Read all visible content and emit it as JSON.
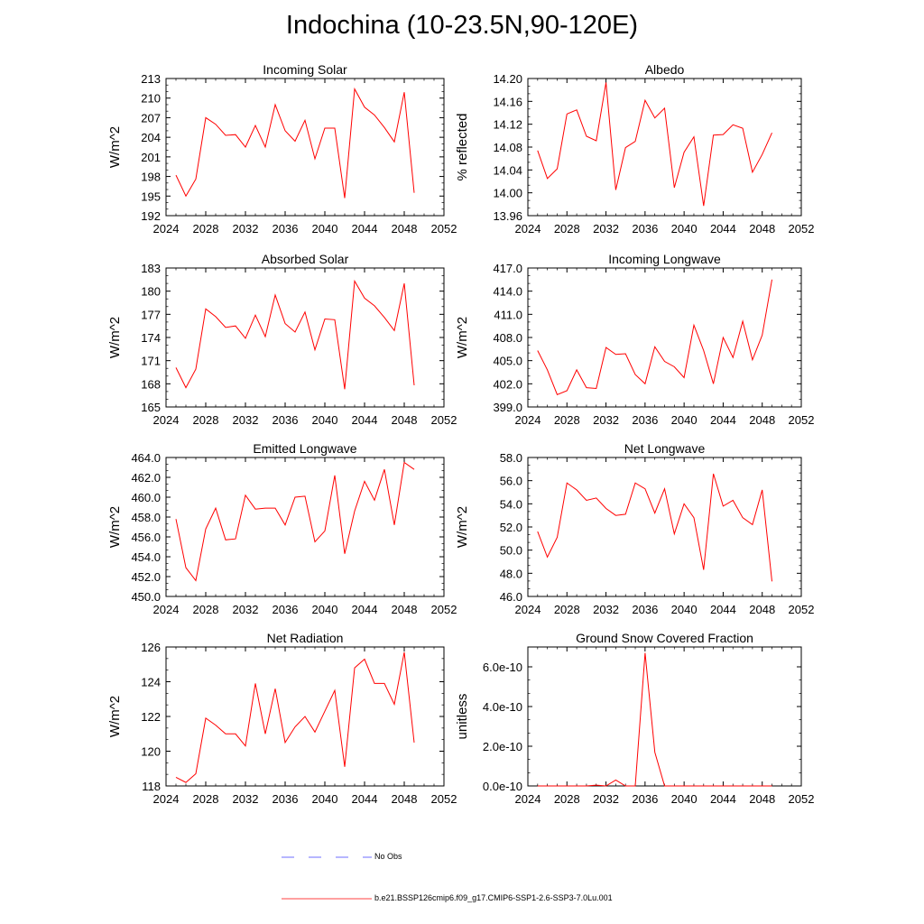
{
  "page": {
    "title": "Indochina (10-23.5N,90-120E)"
  },
  "legend": {
    "entries": [
      {
        "label": "No Obs",
        "color": "#3c3cff",
        "style": "dashed"
      },
      {
        "label": "b.e21.BSSP126cmip6.f09_g17.CMIP6-SSP1-2.6-SSP3-7.0Lu.001",
        "color": "#ff0000",
        "style": "solid"
      }
    ]
  },
  "chart_data": [
    {
      "type": "line",
      "title": "Incoming Solar",
      "ylabel": "W/m^2",
      "xlabel": "",
      "xlim": [
        2024,
        2052
      ],
      "ylim": [
        192,
        213
      ],
      "xticks": [
        2024,
        2028,
        2032,
        2036,
        2040,
        2044,
        2048,
        2052
      ],
      "xtick_labels": [
        "2024",
        "2028",
        "2032",
        "2036",
        "2040",
        "2044",
        "2048",
        "2052"
      ],
      "yticks": [
        192,
        195,
        198,
        201,
        204,
        207,
        210,
        213
      ],
      "ytick_labels": [
        "192",
        "195",
        "198",
        "201",
        "204",
        "207",
        "210",
        "213"
      ],
      "series": [
        {
          "color": "#ff0000",
          "x": [
            2025,
            2026,
            2027,
            2028,
            2029,
            2030,
            2031,
            2032,
            2033,
            2034,
            2035,
            2036,
            2037,
            2038,
            2039,
            2040,
            2041,
            2042,
            2043,
            2044,
            2045,
            2046,
            2047,
            2048,
            2049
          ],
          "y": [
            198.2,
            195.0,
            197.6,
            207.0,
            206.0,
            204.3,
            204.4,
            202.5,
            205.8,
            202.5,
            209.0,
            205.0,
            203.4,
            206.6,
            200.7,
            205.4,
            205.4,
            194.7,
            211.4,
            208.6,
            207.4,
            205.5,
            203.3,
            210.9,
            195.5
          ]
        }
      ]
    },
    {
      "type": "line",
      "title": "Albedo",
      "ylabel": "% reflected",
      "xlabel": "",
      "xlim": [
        2024,
        2052
      ],
      "ylim": [
        13.96,
        14.2
      ],
      "xticks": [
        2024,
        2028,
        2032,
        2036,
        2040,
        2044,
        2048,
        2052
      ],
      "xtick_labels": [
        "2024",
        "2028",
        "2032",
        "2036",
        "2040",
        "2044",
        "2048",
        "2052"
      ],
      "yticks": [
        13.96,
        14.0,
        14.04,
        14.08,
        14.12,
        14.16,
        14.2
      ],
      "ytick_labels": [
        "13.96",
        "14.00",
        "14.04",
        "14.08",
        "14.12",
        "14.16",
        "14.20"
      ],
      "series": [
        {
          "color": "#ff0000",
          "x": [
            2025,
            2026,
            2027,
            2028,
            2029,
            2030,
            2031,
            2032,
            2033,
            2034,
            2035,
            2036,
            2037,
            2038,
            2039,
            2040,
            2041,
            2042,
            2043,
            2044,
            2045,
            2046,
            2047,
            2048,
            2049
          ],
          "y": [
            14.074,
            14.025,
            14.042,
            14.138,
            14.145,
            14.099,
            14.091,
            14.193,
            14.005,
            14.079,
            14.09,
            14.162,
            14.131,
            14.148,
            14.009,
            14.071,
            14.098,
            13.977,
            14.101,
            14.102,
            14.119,
            14.113,
            14.036,
            14.067,
            14.105
          ]
        }
      ]
    },
    {
      "type": "line",
      "title": "Absorbed Solar",
      "ylabel": "W/m^2",
      "xlabel": "",
      "xlim": [
        2024,
        2052
      ],
      "ylim": [
        165,
        183
      ],
      "xticks": [
        2024,
        2028,
        2032,
        2036,
        2040,
        2044,
        2048,
        2052
      ],
      "xtick_labels": [
        "2024",
        "2028",
        "2032",
        "2036",
        "2040",
        "2044",
        "2048",
        "2052"
      ],
      "yticks": [
        165,
        168,
        171,
        174,
        177,
        180,
        183
      ],
      "ytick_labels": [
        "165",
        "168",
        "171",
        "174",
        "177",
        "180",
        "183"
      ],
      "series": [
        {
          "color": "#ff0000",
          "x": [
            2025,
            2026,
            2027,
            2028,
            2029,
            2030,
            2031,
            2032,
            2033,
            2034,
            2035,
            2036,
            2037,
            2038,
            2039,
            2040,
            2041,
            2042,
            2043,
            2044,
            2045,
            2046,
            2047,
            2048,
            2049
          ],
          "y": [
            170.1,
            167.5,
            169.9,
            177.7,
            176.7,
            175.3,
            175.5,
            173.9,
            176.9,
            174.1,
            179.5,
            175.8,
            174.7,
            177.3,
            172.4,
            176.4,
            176.3,
            167.3,
            181.3,
            179.1,
            178.1,
            176.6,
            174.9,
            181.0,
            167.8
          ]
        }
      ]
    },
    {
      "type": "line",
      "title": "Incoming Longwave",
      "ylabel": "W/m^2",
      "xlabel": "",
      "xlim": [
        2024,
        2052
      ],
      "ylim": [
        399.0,
        417.0
      ],
      "xticks": [
        2024,
        2028,
        2032,
        2036,
        2040,
        2044,
        2048,
        2052
      ],
      "xtick_labels": [
        "2024",
        "2028",
        "2032",
        "2036",
        "2040",
        "2044",
        "2048",
        "2052"
      ],
      "yticks": [
        399.0,
        402.0,
        405.0,
        408.0,
        411.0,
        414.0,
        417.0
      ],
      "ytick_labels": [
        "399.0",
        "402.0",
        "405.0",
        "408.0",
        "411.0",
        "414.0",
        "417.0"
      ],
      "series": [
        {
          "color": "#ff0000",
          "x": [
            2025,
            2026,
            2027,
            2028,
            2029,
            2030,
            2031,
            2032,
            2033,
            2034,
            2035,
            2036,
            2037,
            2038,
            2039,
            2040,
            2041,
            2042,
            2043,
            2044,
            2045,
            2046,
            2047,
            2048,
            2049
          ],
          "y": [
            406.3,
            403.8,
            400.6,
            401.1,
            403.8,
            401.5,
            401.4,
            406.7,
            405.8,
            405.9,
            403.2,
            402.0,
            406.8,
            404.9,
            404.2,
            402.8,
            409.6,
            406.3,
            402.0,
            408.0,
            405.4,
            410.1,
            405.1,
            408.3,
            415.5
          ]
        }
      ]
    },
    {
      "type": "line",
      "title": "Emitted Longwave",
      "ylabel": "W/m^2",
      "xlabel": "",
      "xlim": [
        2024,
        2052
      ],
      "ylim": [
        450.0,
        464.0
      ],
      "xticks": [
        2024,
        2028,
        2032,
        2036,
        2040,
        2044,
        2048,
        2052
      ],
      "xtick_labels": [
        "2024",
        "2028",
        "2032",
        "2036",
        "2040",
        "2044",
        "2048",
        "2052"
      ],
      "yticks": [
        450.0,
        452.0,
        454.0,
        456.0,
        458.0,
        460.0,
        462.0,
        464.0
      ],
      "ytick_labels": [
        "450.0",
        "452.0",
        "454.0",
        "456.0",
        "458.0",
        "460.0",
        "462.0",
        "464.0"
      ],
      "series": [
        {
          "color": "#ff0000",
          "x": [
            2025,
            2026,
            2027,
            2028,
            2029,
            2030,
            2031,
            2032,
            2033,
            2034,
            2035,
            2036,
            2037,
            2038,
            2039,
            2040,
            2041,
            2042,
            2043,
            2044,
            2045,
            2046,
            2047,
            2048,
            2049
          ],
          "y": [
            457.8,
            452.9,
            451.6,
            456.8,
            458.9,
            455.7,
            455.8,
            460.2,
            458.8,
            458.9,
            458.9,
            457.2,
            460.0,
            460.1,
            455.5,
            456.6,
            462.2,
            454.3,
            458.6,
            461.6,
            459.7,
            462.8,
            457.2,
            463.5,
            462.8
          ]
        }
      ]
    },
    {
      "type": "line",
      "title": "Net Longwave",
      "ylabel": "W/m^2",
      "xlabel": "",
      "xlim": [
        2024,
        2052
      ],
      "ylim": [
        46.0,
        58.0
      ],
      "xticks": [
        2024,
        2028,
        2032,
        2036,
        2040,
        2044,
        2048,
        2052
      ],
      "xtick_labels": [
        "2024",
        "2028",
        "2032",
        "2036",
        "2040",
        "2044",
        "2048",
        "2052"
      ],
      "yticks": [
        46.0,
        48.0,
        50.0,
        52.0,
        54.0,
        56.0,
        58.0
      ],
      "ytick_labels": [
        "46.0",
        "48.0",
        "50.0",
        "52.0",
        "54.0",
        "56.0",
        "58.0"
      ],
      "series": [
        {
          "color": "#ff0000",
          "x": [
            2025,
            2026,
            2027,
            2028,
            2029,
            2030,
            2031,
            2032,
            2033,
            2034,
            2035,
            2036,
            2037,
            2038,
            2039,
            2040,
            2041,
            2042,
            2043,
            2044,
            2045,
            2046,
            2047,
            2048,
            2049
          ],
          "y": [
            51.6,
            49.4,
            51.1,
            55.8,
            55.2,
            54.3,
            54.5,
            53.6,
            53.0,
            53.1,
            55.8,
            55.3,
            53.2,
            55.3,
            51.4,
            54.0,
            52.8,
            48.3,
            56.6,
            53.8,
            54.3,
            52.8,
            52.2,
            55.2,
            47.3
          ]
        }
      ]
    },
    {
      "type": "line",
      "title": "Net Radiation",
      "ylabel": "W/m^2",
      "xlabel": "",
      "xlim": [
        2024,
        2052
      ],
      "ylim": [
        118,
        126
      ],
      "xticks": [
        2024,
        2028,
        2032,
        2036,
        2040,
        2044,
        2048,
        2052
      ],
      "xtick_labels": [
        "2024",
        "2028",
        "2032",
        "2036",
        "2040",
        "2044",
        "2048",
        "2052"
      ],
      "yticks": [
        118,
        120,
        122,
        124,
        126
      ],
      "ytick_labels": [
        "118",
        "120",
        "122",
        "124",
        "126"
      ],
      "series": [
        {
          "color": "#ff0000",
          "x": [
            2025,
            2026,
            2027,
            2028,
            2029,
            2030,
            2031,
            2032,
            2033,
            2034,
            2035,
            2036,
            2037,
            2038,
            2039,
            2040,
            2041,
            2042,
            2043,
            2044,
            2045,
            2046,
            2047,
            2048,
            2049
          ],
          "y": [
            118.5,
            118.2,
            118.7,
            121.9,
            121.5,
            121.0,
            121.0,
            120.3,
            123.9,
            121.0,
            123.6,
            120.5,
            121.4,
            122.0,
            121.1,
            122.3,
            123.5,
            119.1,
            124.8,
            125.3,
            123.9,
            123.9,
            122.7,
            125.7,
            120.5
          ]
        }
      ]
    },
    {
      "type": "line",
      "title": "Ground Snow Covered Fraction",
      "ylabel": "unitless",
      "xlabel": "",
      "xlim": [
        2024,
        2052
      ],
      "ylim": [
        0,
        7e-10
      ],
      "xticks": [
        2024,
        2028,
        2032,
        2036,
        2040,
        2044,
        2048,
        2052
      ],
      "xtick_labels": [
        "2024",
        "2028",
        "2032",
        "2036",
        "2040",
        "2044",
        "2048",
        "2052"
      ],
      "yticks": [
        0,
        2e-10,
        4e-10,
        6e-10
      ],
      "ytick_labels": [
        "0.0e-10",
        "2.0e-10",
        "4.0e-10",
        "6.0e-10"
      ],
      "series": [
        {
          "color": "#ff0000",
          "x": [
            2025,
            2026,
            2027,
            2028,
            2029,
            2030,
            2031,
            2032,
            2033,
            2034,
            2035,
            2036,
            2037,
            2038,
            2039,
            2040,
            2041,
            2042,
            2043,
            2044,
            2045,
            2046,
            2047,
            2048,
            2049
          ],
          "y": [
            0,
            0,
            0,
            0,
            0,
            0,
            4e-12,
            0,
            3e-11,
            0,
            0,
            6.7e-10,
            1.7e-10,
            0,
            0,
            0,
            0,
            0,
            0,
            0,
            0,
            0,
            0,
            0,
            0
          ]
        }
      ]
    }
  ]
}
